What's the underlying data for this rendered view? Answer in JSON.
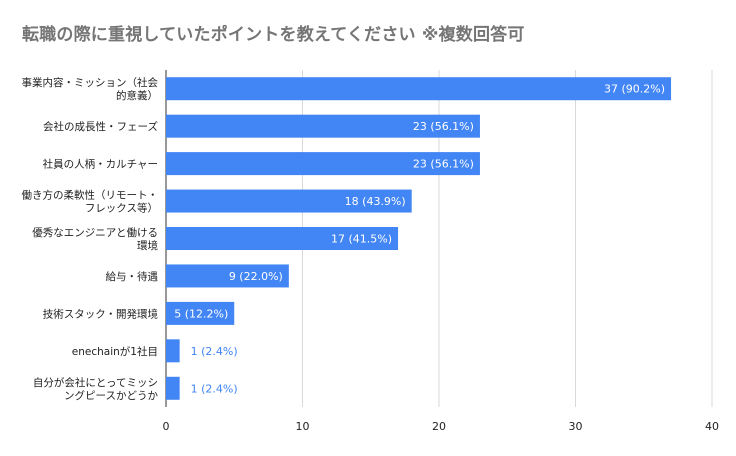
{
  "chart_data": {
    "type": "bar",
    "orientation": "horizontal",
    "title": "転職の際に重視していたポイントを教えてください ※複数回答可",
    "categories": [
      "事業内容・ミッション（社会的意義）",
      "会社の成長性・フェーズ",
      "社員の人柄・カルチャー",
      "働き方の柔軟性（リモート・フレックス等）",
      "優秀なエンジニアと働ける環境",
      "給与・待遇",
      "技術スタック・開発環境",
      "enechainが1社目",
      "自分が会社にとってミッシングピースかどうか"
    ],
    "category_display_lines": [
      [
        "事業内容・ミッション（社会",
        "的意義）"
      ],
      [
        "会社の成長性・フェーズ"
      ],
      [
        "社員の人柄・カルチャー"
      ],
      [
        "働き方の柔軟性（リモート・",
        "フレックス等）"
      ],
      [
        "優秀なエンジニアと働ける",
        "環境"
      ],
      [
        "給与・待遇"
      ],
      [
        "技術スタック・開発環境"
      ],
      [
        "enechainが1社目"
      ],
      [
        "自分が会社にとってミッシ",
        "ングピースかどうか"
      ]
    ],
    "values": [
      37,
      23,
      23,
      18,
      17,
      9,
      5,
      1,
      1
    ],
    "data_labels": [
      "37 (90.2%)",
      "23 (56.1%)",
      "23 (56.1%)",
      "18 (43.9%)",
      "17 (41.5%)",
      "9 (22.0%)",
      "5 (12.2%)",
      "1 (2.4%)",
      "1 (2.4%)"
    ],
    "xlim": [
      0,
      40
    ],
    "x_ticks": [
      0,
      10,
      20,
      30,
      40
    ],
    "xlabel": "",
    "ylabel": "",
    "grid": true,
    "legend": "none",
    "colors": {
      "bar": "#4285f4",
      "label_inside": "#ffffff",
      "label_outside": "#4285f4",
      "grid": "#d9d9d9",
      "axis_text": "#222222",
      "title": "#757575"
    }
  }
}
